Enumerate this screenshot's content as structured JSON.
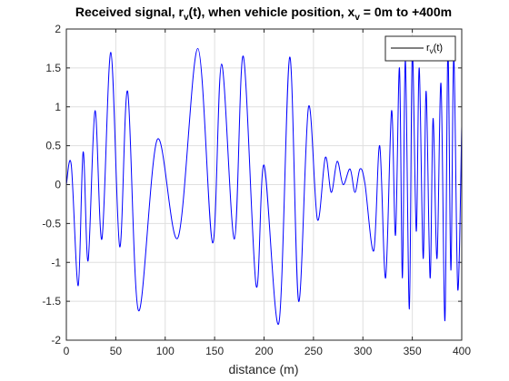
{
  "chart_data": {
    "type": "line",
    "title": {
      "parts": [
        "Received signal, r",
        "v",
        "(t), when vehicle position, x",
        "v",
        " = 0m to +400m"
      ]
    },
    "xlabel": "distance (m)",
    "ylabel": "",
    "xlim": [
      0,
      400
    ],
    "ylim": [
      -2,
      2
    ],
    "xticks": [
      0,
      50,
      100,
      150,
      200,
      250,
      300,
      350,
      400
    ],
    "yticks": [
      -2,
      -1.5,
      -1,
      -0.5,
      0,
      0.5,
      1,
      1.5,
      2
    ],
    "xtick_labels": [
      "0",
      "50",
      "100",
      "150",
      "200",
      "250",
      "300",
      "350",
      "400"
    ],
    "ytick_labels": [
      "-2",
      "-1.5",
      "-1",
      "-0.5",
      "0",
      "0.5",
      "1",
      "1.5",
      "2"
    ],
    "grid": true,
    "legend": {
      "position": "top-right",
      "label_parts": [
        "r",
        "v",
        "(t)"
      ]
    },
    "series": [
      {
        "label_parts": [
          "r",
          "v",
          "(t)"
        ],
        "color": "#0000ff",
        "x": [
          0,
          5,
          12,
          17,
          22,
          29,
          36,
          45,
          54,
          62,
          73,
          92,
          113,
          133,
          148,
          157,
          170,
          179,
          192,
          200,
          215,
          226,
          235,
          245,
          254,
          262,
          268,
          274,
          280,
          287,
          292,
          297,
          302,
          311,
          317,
          323,
          329,
          333,
          337,
          340,
          343,
          347,
          350,
          354,
          357,
          361,
          364,
          368,
          371,
          375,
          379,
          383,
          386,
          389,
          392,
          396,
          400
        ],
        "y": [
          0.0,
          0.25,
          -1.3,
          0.42,
          -0.98,
          0.95,
          -0.7,
          1.7,
          -0.8,
          1.2,
          -1.62,
          0.58,
          -0.68,
          1.75,
          -0.75,
          1.55,
          -0.7,
          1.65,
          -1.3,
          0.25,
          -1.78,
          1.64,
          -1.5,
          1.0,
          -0.45,
          0.35,
          -0.1,
          0.3,
          0.0,
          0.2,
          -0.1,
          0.2,
          0.02,
          -0.85,
          0.5,
          -1.2,
          0.95,
          -0.65,
          1.5,
          -1.2,
          1.6,
          -1.6,
          1.7,
          -0.6,
          1.5,
          -0.95,
          1.2,
          -1.2,
          0.85,
          -0.95,
          1.3,
          -1.75,
          1.75,
          -1.1,
          1.65,
          -1.35,
          0.75
        ]
      }
    ]
  }
}
